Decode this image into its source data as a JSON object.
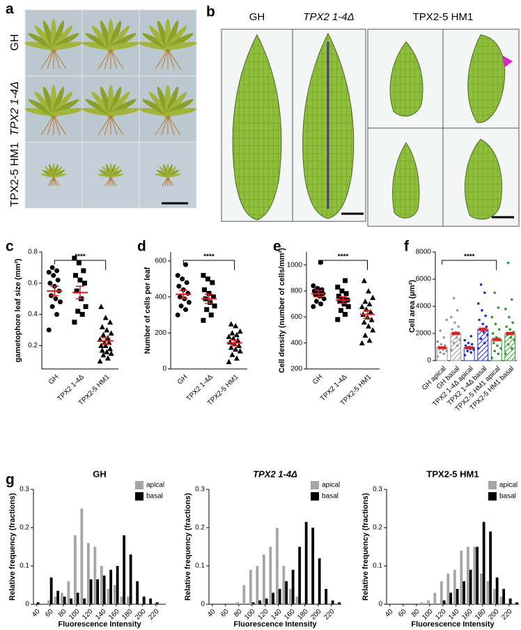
{
  "panel_a": {
    "label": "a",
    "rows": [
      "GH",
      "TPX2 1-4Δ",
      "TPX2-5 HM1"
    ]
  },
  "panel_b": {
    "label": "b",
    "columns": [
      "GH",
      "TPX2 1-4Δ",
      "TPX2-5 HM1"
    ]
  },
  "chart_data": [
    {
      "type": "dotplot",
      "panel": "c",
      "ylabel": "gametophore leaf size (mm²)",
      "categories": [
        "GH",
        "TPX2 1-4Δ",
        "TPX2-5 HM1"
      ],
      "markers": [
        "circle",
        "square",
        "triangle"
      ],
      "groups": [
        [
          0.3,
          0.4,
          0.45,
          0.48,
          0.5,
          0.52,
          0.55,
          0.58,
          0.6,
          0.62,
          0.65,
          0.67,
          0.68,
          0.7
        ],
        [
          0.35,
          0.4,
          0.42,
          0.45,
          0.5,
          0.55,
          0.6,
          0.62,
          0.65,
          0.68,
          0.73,
          0.76
        ],
        [
          0.1,
          0.12,
          0.14,
          0.15,
          0.16,
          0.17,
          0.18,
          0.2,
          0.2,
          0.22,
          0.22,
          0.24,
          0.25,
          0.27,
          0.28,
          0.3,
          0.32,
          0.35,
          0.38,
          0.45
        ]
      ],
      "means": [
        0.55,
        0.54,
        0.23
      ],
      "errors": [
        0.03,
        0.04,
        0.02
      ],
      "ylim": [
        0.05,
        0.8
      ],
      "yticks": [
        0.2,
        0.4,
        0.6,
        0.8
      ],
      "significance": {
        "label": "****",
        "from": 0,
        "to": 2
      }
    },
    {
      "type": "dotplot",
      "panel": "d",
      "ylabel": "Number of cells per leaf",
      "categories": [
        "GH",
        "TPX2 1-4Δ",
        "TPX2-5 HM1"
      ],
      "markers": [
        "circle",
        "square",
        "triangle"
      ],
      "groups": [
        [
          300,
          330,
          350,
          370,
          390,
          400,
          420,
          440,
          460,
          480,
          500,
          520,
          580
        ],
        [
          270,
          300,
          330,
          350,
          370,
          390,
          400,
          420,
          440,
          480,
          500,
          520
        ],
        [
          40,
          60,
          80,
          100,
          110,
          120,
          130,
          140,
          150,
          160,
          170,
          180,
          190,
          200,
          210,
          240,
          250
        ]
      ],
      "means": [
        415,
        390,
        145
      ],
      "errors": [
        22,
        25,
        15
      ],
      "ylim": [
        0,
        650
      ],
      "yticks": [
        0,
        200,
        400,
        600
      ],
      "significance": {
        "label": "****",
        "from": 0,
        "to": 2
      }
    },
    {
      "type": "dotplot",
      "panel": "e",
      "ylabel": "Cell density (number of cells/mm²)",
      "categories": [
        "GH",
        "TPX2 1-4Δ",
        "TPX2-5 HM1"
      ],
      "markers": [
        "circle",
        "square",
        "triangle"
      ],
      "groups": [
        [
          680,
          700,
          720,
          740,
          760,
          770,
          780,
          790,
          800,
          810,
          820,
          840,
          1020
        ],
        [
          580,
          620,
          650,
          680,
          700,
          720,
          730,
          740,
          760,
          780,
          800,
          830,
          880
        ],
        [
          400,
          420,
          460,
          500,
          530,
          560,
          580,
          600,
          620,
          640,
          660,
          680,
          700,
          720,
          750,
          800,
          880
        ]
      ],
      "means": [
        780,
        730,
        620
      ],
      "errors": [
        25,
        25,
        30
      ],
      "ylim": [
        200,
        1100
      ],
      "yticks": [
        200,
        400,
        600,
        800,
        1000
      ],
      "significance": {
        "label": "****",
        "from": 0,
        "to": 2
      }
    },
    {
      "type": "dotbar",
      "panel": "f",
      "ylabel": "Cell area (µm²)",
      "categories": [
        "GH apical",
        "GH basal",
        "TPX2 1-4Δ apical",
        "TPX2 1-4Δ basal",
        "TPX2-5 HM1 apical",
        "TPX2-5 HM1 basal"
      ],
      "colors": [
        "#9a9a9a",
        "#9a9a9a",
        "#1f2bd8",
        "#1f2bd8",
        "#2a9a2a",
        "#2a9a2a"
      ],
      "hatched": [
        false,
        true,
        false,
        true,
        false,
        true
      ],
      "groups": [
        [
          300,
          500,
          600,
          700,
          800,
          850,
          900,
          950,
          1000,
          1100,
          1200,
          1400,
          1700,
          2200,
          3000
        ],
        [
          800,
          1100,
          1300,
          1500,
          1700,
          1900,
          2000,
          2100,
          2300,
          2500,
          2800,
          3200,
          3700,
          4600
        ],
        [
          400,
          600,
          700,
          800,
          850,
          900,
          950,
          1000,
          1100,
          1200,
          1300,
          1500,
          1800
        ],
        [
          900,
          1300,
          1600,
          1900,
          2100,
          2300,
          2500,
          2700,
          3000,
          3300,
          3700,
          4200,
          5000,
          5600
        ],
        [
          200,
          500,
          700,
          900,
          1100,
          1300,
          1500,
          1700,
          2000,
          2300,
          2700,
          3200,
          3900,
          5000
        ],
        [
          500,
          900,
          1200,
          1500,
          1700,
          1900,
          2100,
          2300,
          2500,
          2800,
          3200,
          3800,
          4500,
          7200
        ]
      ],
      "means": [
        950,
        2000,
        950,
        2300,
        1550,
        2000
      ],
      "errors": [
        60,
        80,
        60,
        90,
        90,
        80
      ],
      "ylim": [
        0,
        8000
      ],
      "yticks": [
        0,
        2000,
        4000,
        6000,
        8000
      ],
      "significance": {
        "label": "****",
        "from": 0,
        "to": 4
      }
    },
    {
      "type": "histogram",
      "panel": "g",
      "title": "GH",
      "xlabel": "Fluorescence Intensity",
      "ylabel": "Relative frequency (fractions)",
      "x": [
        40,
        50,
        60,
        70,
        80,
        90,
        100,
        110,
        120,
        130,
        140,
        150,
        160,
        170,
        180,
        190,
        200,
        210,
        220,
        230
      ],
      "series": [
        {
          "name": "apical",
          "color": "#a6a6a6",
          "values": [
            0,
            0,
            0.01,
            0.02,
            0.03,
            0.06,
            0.18,
            0.25,
            0.16,
            0.15,
            0.1,
            0.04,
            0.05,
            0.02,
            0.02,
            0,
            0,
            0,
            0,
            0
          ]
        },
        {
          "name": "basal",
          "color": "#000000",
          "values": [
            0.005,
            0,
            0.07,
            0.035,
            0.02,
            0.015,
            0.03,
            0.015,
            0.065,
            0.065,
            0.075,
            0.09,
            0.1,
            0.18,
            0.13,
            0.06,
            0.02,
            0.015,
            0.005,
            0
          ]
        }
      ],
      "xlim": [
        35,
        235
      ],
      "xticks": [
        40,
        60,
        80,
        100,
        120,
        140,
        160,
        180,
        200,
        220
      ],
      "ylim": [
        0,
        0.3
      ],
      "yticks": [
        0,
        0.1,
        0.2,
        0.3
      ],
      "legend": "upper right"
    },
    {
      "type": "histogram",
      "title": "TPX2 1-4Δ",
      "xlabel": "Fluorescence Intensity",
      "ylabel": "Relative frequency (fractions)",
      "x": [
        40,
        50,
        60,
        70,
        80,
        90,
        100,
        110,
        120,
        130,
        140,
        150,
        160,
        170,
        180,
        190,
        200,
        210,
        220,
        230
      ],
      "series": [
        {
          "name": "apical",
          "color": "#a6a6a6",
          "values": [
            0,
            0,
            0,
            0,
            0.005,
            0.05,
            0.09,
            0.1,
            0.13,
            0.15,
            0.2,
            0.1,
            0.04,
            0.02,
            0.005,
            0,
            0,
            0,
            0,
            0
          ]
        },
        {
          "name": "basal",
          "color": "#000000",
          "values": [
            0,
            0,
            0,
            0,
            0,
            0,
            0.005,
            0.01,
            0.015,
            0.03,
            0.04,
            0.06,
            0.09,
            0.15,
            0.215,
            0.2,
            0.12,
            0.04,
            0.01,
            0.005
          ]
        }
      ],
      "xlim": [
        35,
        235
      ],
      "xticks": [
        40,
        60,
        80,
        100,
        120,
        140,
        160,
        180,
        200,
        220
      ],
      "ylim": [
        0,
        0.3
      ],
      "yticks": [
        0,
        0.1,
        0.2,
        0.3
      ],
      "legend": "upper right"
    },
    {
      "type": "histogram",
      "title": "TPX2-5 HM1",
      "xlabel": "Fluorescence Intensity",
      "ylabel": "Relative frequency (fractions)",
      "x": [
        40,
        50,
        60,
        70,
        80,
        90,
        100,
        110,
        120,
        130,
        140,
        150,
        160,
        170,
        180,
        190,
        200,
        210,
        220,
        230
      ],
      "series": [
        {
          "name": "apical",
          "color": "#a6a6a6",
          "values": [
            0,
            0,
            0,
            0,
            0,
            0.005,
            0.01,
            0.03,
            0.06,
            0.08,
            0.09,
            0.14,
            0.15,
            0.15,
            0.08,
            0.06,
            0.04,
            0.02,
            0,
            0
          ]
        },
        {
          "name": "basal",
          "color": "#000000",
          "values": [
            0,
            0,
            0,
            0,
            0,
            0,
            0,
            0,
            0.01,
            0.03,
            0.04,
            0.06,
            0.09,
            0.15,
            0.215,
            0.19,
            0.07,
            0.04,
            0.015,
            0.005
          ]
        }
      ],
      "xlim": [
        35,
        235
      ],
      "xticks": [
        40,
        60,
        80,
        100,
        120,
        140,
        160,
        180,
        200,
        220
      ],
      "ylim": [
        0,
        0.3
      ],
      "yticks": [
        0,
        0.1,
        0.2,
        0.3
      ],
      "legend": "upper right"
    }
  ]
}
